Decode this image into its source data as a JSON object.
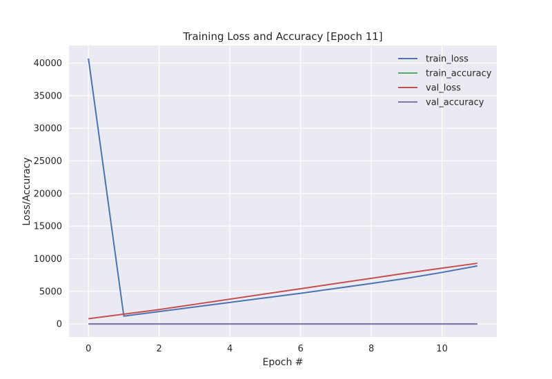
{
  "chart_data": {
    "type": "line",
    "title": "Training Loss and Accuracy [Epoch 11]",
    "xlabel": "Epoch #",
    "ylabel": "Loss/Accuracy",
    "xlim": [
      -0.55,
      11.55
    ],
    "ylim": [
      -2000,
      42700
    ],
    "xticks": [
      0,
      2,
      4,
      6,
      8,
      10
    ],
    "yticks": [
      0,
      5000,
      10000,
      15000,
      20000,
      25000,
      30000,
      35000,
      40000
    ],
    "grid": true,
    "legend_position": "top-right",
    "x": [
      0,
      1,
      2,
      3,
      4,
      5,
      6,
      7,
      8,
      9,
      10,
      11
    ],
    "series": [
      {
        "name": "train_loss",
        "color": "#4C72B0",
        "values": [
          40700,
          1200,
          1900,
          2600,
          3300,
          4000,
          4700,
          5450,
          6200,
          7000,
          7900,
          8900
        ]
      },
      {
        "name": "train_accuracy",
        "color": "#55A868",
        "values": [
          0.1,
          0.1,
          0.1,
          0.1,
          0.1,
          0.1,
          0.1,
          0.1,
          0.1,
          0.1,
          0.1,
          0.1
        ]
      },
      {
        "name": "val_loss",
        "color": "#C44E52",
        "values": [
          800,
          1500,
          2200,
          3000,
          3800,
          4600,
          5400,
          6200,
          7000,
          7800,
          8550,
          9300
        ]
      },
      {
        "name": "val_accuracy",
        "color": "#8172B2",
        "values": [
          0.1,
          0.1,
          0.1,
          0.1,
          0.1,
          0.1,
          0.1,
          0.1,
          0.1,
          0.1,
          0.1,
          0.1
        ]
      }
    ]
  }
}
